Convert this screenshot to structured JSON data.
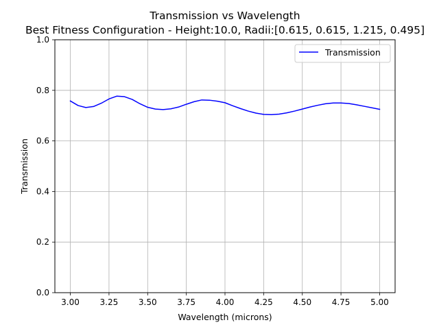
{
  "chart_data": {
    "type": "line",
    "title": "Transmission vs Wavelength",
    "subtitle": "Best Fitness Configuration - Height:10.0, Radii:[0.615, 0.615, 1.215, 0.495]",
    "xlabel": "Wavelength (microns)",
    "ylabel": "Transmission",
    "xlim": [
      2.9,
      5.1
    ],
    "ylim": [
      0.0,
      1.0
    ],
    "xticks": [
      "3.00",
      "3.25",
      "3.50",
      "3.75",
      "4.00",
      "4.25",
      "4.50",
      "4.75",
      "5.00"
    ],
    "yticks": [
      "0.0",
      "0.2",
      "0.4",
      "0.6",
      "0.8",
      "1.0"
    ],
    "grid": true,
    "legend_position": "top-right",
    "series": [
      {
        "name": "Transmission",
        "color": "#0000ff",
        "x": [
          3.0,
          3.05,
          3.1,
          3.15,
          3.2,
          3.25,
          3.3,
          3.35,
          3.4,
          3.45,
          3.5,
          3.55,
          3.6,
          3.65,
          3.7,
          3.75,
          3.8,
          3.85,
          3.9,
          3.95,
          4.0,
          4.05,
          4.1,
          4.15,
          4.2,
          4.25,
          4.3,
          4.35,
          4.4,
          4.45,
          4.5,
          4.55,
          4.6,
          4.65,
          4.7,
          4.75,
          4.8,
          4.85,
          4.9,
          4.95,
          5.0
        ],
        "y": [
          0.758,
          0.74,
          0.732,
          0.736,
          0.749,
          0.766,
          0.777,
          0.775,
          0.764,
          0.747,
          0.733,
          0.726,
          0.724,
          0.727,
          0.734,
          0.745,
          0.755,
          0.762,
          0.761,
          0.757,
          0.751,
          0.739,
          0.728,
          0.718,
          0.71,
          0.705,
          0.704,
          0.706,
          0.711,
          0.718,
          0.726,
          0.734,
          0.741,
          0.747,
          0.75,
          0.75,
          0.748,
          0.743,
          0.737,
          0.731,
          0.725
        ]
      }
    ]
  }
}
